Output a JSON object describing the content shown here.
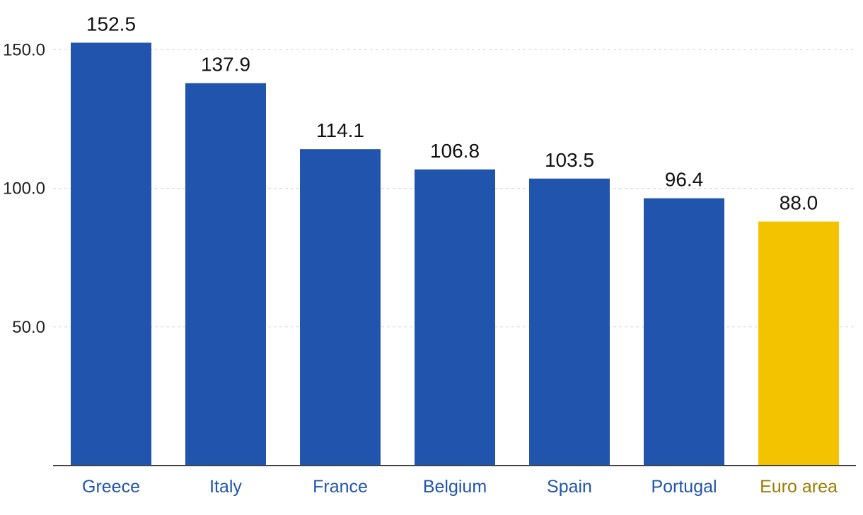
{
  "chart_data": {
    "type": "bar",
    "categories": [
      "Greece",
      "Italy",
      "France",
      "Belgium",
      "Spain",
      "Portugal",
      "Euro area"
    ],
    "values": [
      152.5,
      137.9,
      114.1,
      106.8,
      103.5,
      96.4,
      88.0
    ],
    "value_labels": [
      "152.5",
      "137.9",
      "114.1",
      "106.8",
      "103.5",
      "96.4",
      "88.0"
    ],
    "y_ticks": [
      50.0,
      100.0,
      150.0
    ],
    "y_tick_labels": [
      "50.0",
      "100.0",
      "150.0"
    ],
    "ylim": [
      0,
      152.5
    ],
    "grid": true,
    "colors": {
      "bar": "#2155ad",
      "highlight_bar": "#f3c300",
      "category_label": "#2155ad",
      "highlight_label": "#9a7c00",
      "value_label": "#111111",
      "tick_label": "#222222",
      "grid": "#d4d4d4",
      "axis": "#444444"
    },
    "highlight_category": "Euro area"
  }
}
